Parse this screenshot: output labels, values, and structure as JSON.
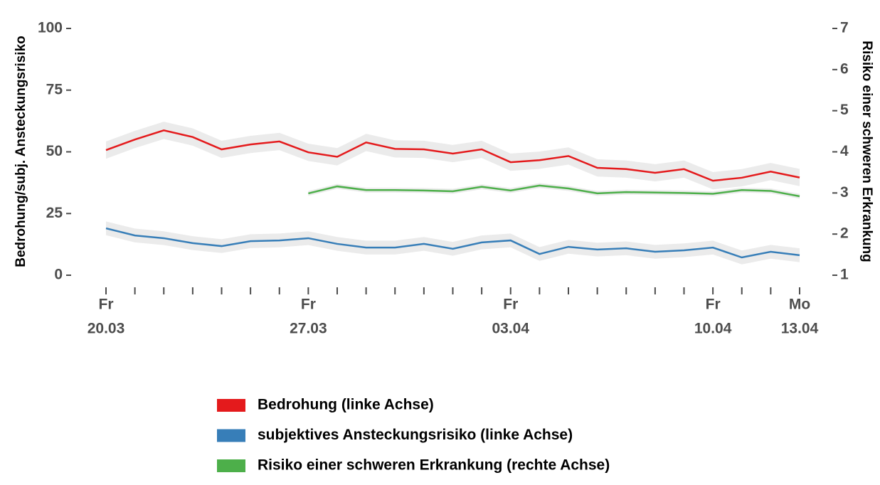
{
  "chart_data": {
    "type": "line",
    "y_label": "Bedrohung/subj. Ansteckungsrisiko",
    "y2_label": "Risiko einer schweren Erkrankung",
    "categories": [
      [
        "Fr",
        "20.03"
      ],
      null,
      null,
      null,
      null,
      null,
      null,
      [
        "Fr",
        "27.03"
      ],
      null,
      null,
      null,
      null,
      null,
      null,
      [
        "Fr",
        "03.04"
      ],
      null,
      null,
      null,
      null,
      null,
      null,
      [
        "Fr",
        "10.04"
      ],
      null,
      null,
      [
        "Mo",
        "13.04"
      ]
    ],
    "ylim": [
      0,
      100
    ],
    "yticks": [
      0,
      25,
      50,
      75,
      100
    ],
    "y2lim": [
      1,
      7
    ],
    "y2ticks": [
      1,
      2,
      3,
      4,
      5,
      6,
      7
    ],
    "series": [
      {
        "name": "Bedrohung (linke Achse)",
        "color": "#e41a1c",
        "error": 3.5,
        "values": [
          50.7,
          55,
          58.7,
          56,
          51,
          53,
          54.2,
          49.8,
          48,
          53.8,
          51.2,
          51,
          49.3,
          51,
          45.8,
          46.6,
          48.3,
          43.5,
          43,
          41.5,
          43,
          38.3,
          39.5,
          42,
          39.6
        ]
      },
      {
        "name": "subjektives Ansteckungsrisiko (linke Achse)",
        "color": "#377eb8",
        "error": 2.8,
        "values": [
          19,
          16.1,
          15,
          13,
          11.8,
          13.8,
          14.1,
          15,
          12.7,
          11.2,
          11.2,
          12.7,
          10.7,
          13.3,
          14.1,
          8.6,
          11.5,
          10.4,
          10.9,
          9.5,
          10.1,
          11.2,
          7.2,
          9.5,
          8.1
        ]
      },
      {
        "name": "Risiko einer schweren Erkrankung (rechte Achse)",
        "color": "#4daf4a",
        "axis": "y2",
        "error": 0.06,
        "values": [
          null,
          null,
          null,
          null,
          null,
          null,
          null,
          2.99,
          3.16,
          3.07,
          3.07,
          3.06,
          3.04,
          3.15,
          3.06,
          3.18,
          3.11,
          2.99,
          3.02,
          3.01,
          3.0,
          2.98,
          3.07,
          3.05,
          2.92
        ]
      }
    ]
  }
}
